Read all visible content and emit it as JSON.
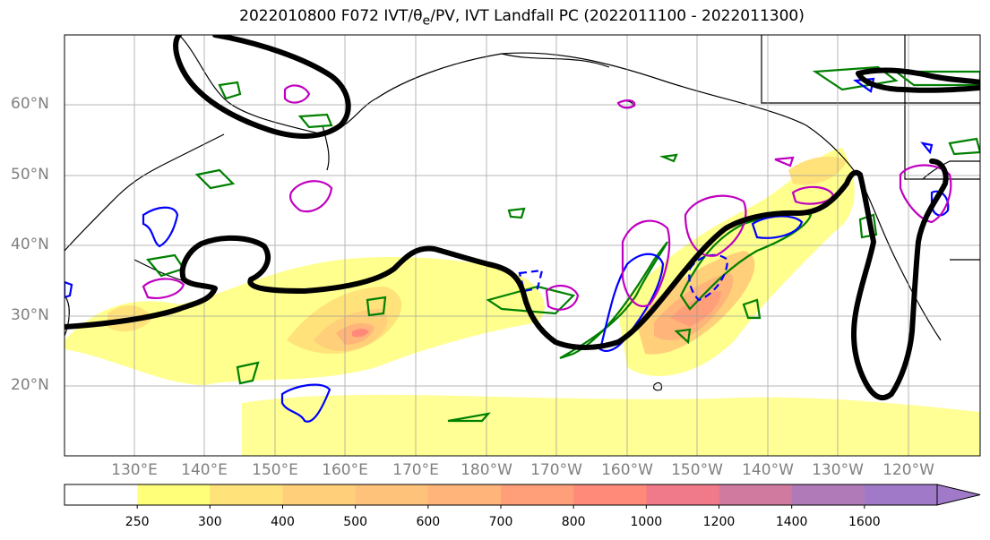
{
  "title_text": "2022010800 F072 IVT/θ",
  "title_sub": "e",
  "title_rest": "/PV, IVT Landfall PC (2022011100 - 2022011300)",
  "lat_labels": [
    "60°N",
    "50°N",
    "40°N",
    "30°N",
    "20°N"
  ],
  "lon_labels": [
    "130°E",
    "140°E",
    "150°E",
    "160°E",
    "170°E",
    "180°W",
    "170°W",
    "160°W",
    "150°W",
    "140°W",
    "130°W",
    "120°W"
  ],
  "colorbar": {
    "ticks": [
      "250",
      "300",
      "400",
      "500",
      "600",
      "700",
      "800",
      "1000",
      "1200",
      "1400",
      "1600"
    ],
    "colors": [
      "#ffffff",
      "#ffff7a",
      "#ffe27a",
      "#ffcf7a",
      "#ffc27a",
      "#ffb47a",
      "#ff9f7a",
      "#ff8a7a",
      "#f07a8a",
      "#d07aa0",
      "#b07ab8",
      "#a07ac8"
    ]
  },
  "colors": {
    "coast": "#000000",
    "grid": "#999999",
    "contour_black": "#000000",
    "contour_green": "#008000",
    "contour_blue": "#0000ff",
    "contour_magenta": "#c000c0"
  }
}
